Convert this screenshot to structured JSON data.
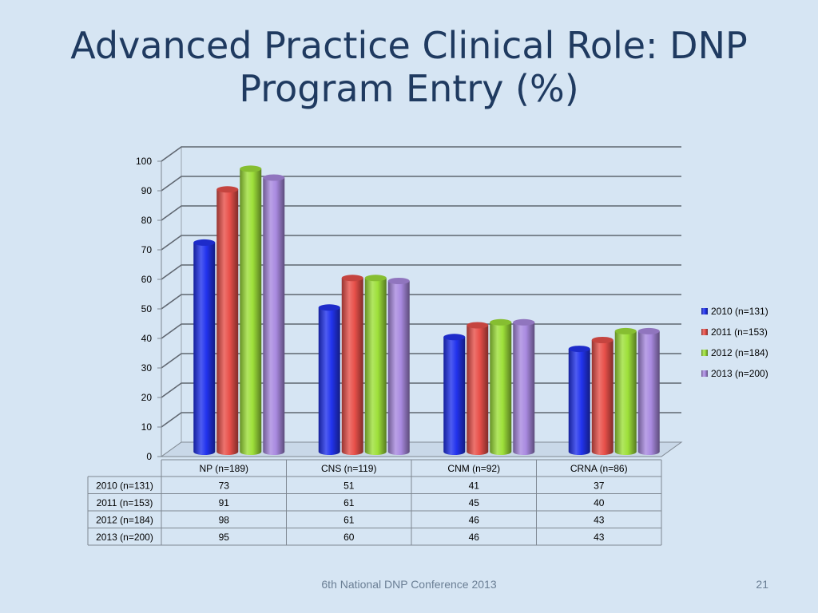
{
  "slide": {
    "title_line1": "Advanced Practice Clinical Role: DNP",
    "title_line2": "Program Entry (%)",
    "footer": "6th National DNP Conference  2013",
    "page_number": "21"
  },
  "chart_data": {
    "type": "bar",
    "categories": [
      "NP (n=189)",
      "CNS (n=119)",
      "CNM (n=92)",
      "CRNA (n=86)"
    ],
    "series": [
      {
        "name": "2010 (n=131)",
        "values": [
          73,
          51,
          41,
          37
        ],
        "color": "#2233ee"
      },
      {
        "name": "2011 (n=153)",
        "values": [
          91,
          61,
          45,
          40
        ],
        "color": "#e8504a"
      },
      {
        "name": "2012 (n=184)",
        "values": [
          98,
          61,
          46,
          43
        ],
        "color": "#9ee03a"
      },
      {
        "name": "2013 (n=200)",
        "values": [
          95,
          60,
          46,
          43
        ],
        "color": "#a98ae0"
      }
    ],
    "ylim": [
      0,
      100
    ],
    "yticks": [
      0,
      10,
      20,
      30,
      40,
      50,
      60,
      70,
      80,
      90,
      100
    ],
    "grid": true,
    "legend": "right",
    "data_table": true
  }
}
